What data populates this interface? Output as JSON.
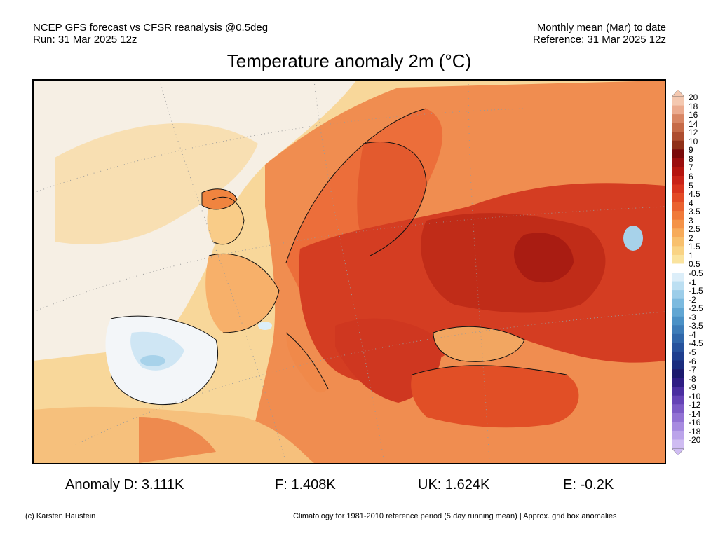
{
  "header": {
    "line1_left": "NCEP GFS forecast vs CFSR reanalysis @0.5deg",
    "line2_left": "Run: 31 Mar 2025 12z",
    "line1_right": "Monthly mean (Mar) to date",
    "line2_right": "Reference: 31 Mar 2025 12z"
  },
  "title": "Temperature anomaly 2m (°C)",
  "colorbar": {
    "labels": [
      "20",
      "18",
      "16",
      "14",
      "12",
      "10",
      "9",
      "8",
      "7",
      "6",
      "5",
      "4.5",
      "4",
      "3.5",
      "3",
      "2.5",
      "2",
      "1.5",
      "1",
      "0.5",
      "-0.5",
      "-1",
      "-1.5",
      "-2",
      "-2.5",
      "-3",
      "-3.5",
      "-4",
      "-4.5",
      "-5",
      "-6",
      "-7",
      "-8",
      "-9",
      "-10",
      "-12",
      "-14",
      "-16",
      "-18",
      "-20"
    ],
    "colors": [
      "#f4c8b0",
      "#ebab8f",
      "#d88664",
      "#c56a47",
      "#ad4d2f",
      "#8f3017",
      "#7a0a0a",
      "#9b0e0e",
      "#b5150f",
      "#c92317",
      "#d9341d",
      "#e34a25",
      "#ea6230",
      "#f07a3a",
      "#f49348",
      "#f7ab5a",
      "#f8c06d",
      "#f9d384",
      "#fae39e",
      "#ffffff",
      "#dceef9",
      "#bcdff2",
      "#9ccde9",
      "#7cbadf",
      "#61a6d3",
      "#4b91c6",
      "#3d7cb8",
      "#3067aa",
      "#26529c",
      "#1e3e8e",
      "#1a2c7e",
      "#1b1a6e",
      "#2e1d84",
      "#4a2ea0",
      "#6543b6",
      "#7c5ac6",
      "#9272d4",
      "#a78be0",
      "#bba4ea",
      "#cfbcf2"
    ]
  },
  "stats": {
    "anomaly_d": "Anomaly D: 3.111K",
    "f": "F: 1.408K",
    "uk": "UK: 1.624K",
    "e": "E: -0.2K"
  },
  "footer": {
    "credit": "(c) Karsten Haustein",
    "note": "Climatology for 1981-2010 reference period (5 day running mean) | Approx. grid box anomalies"
  }
}
